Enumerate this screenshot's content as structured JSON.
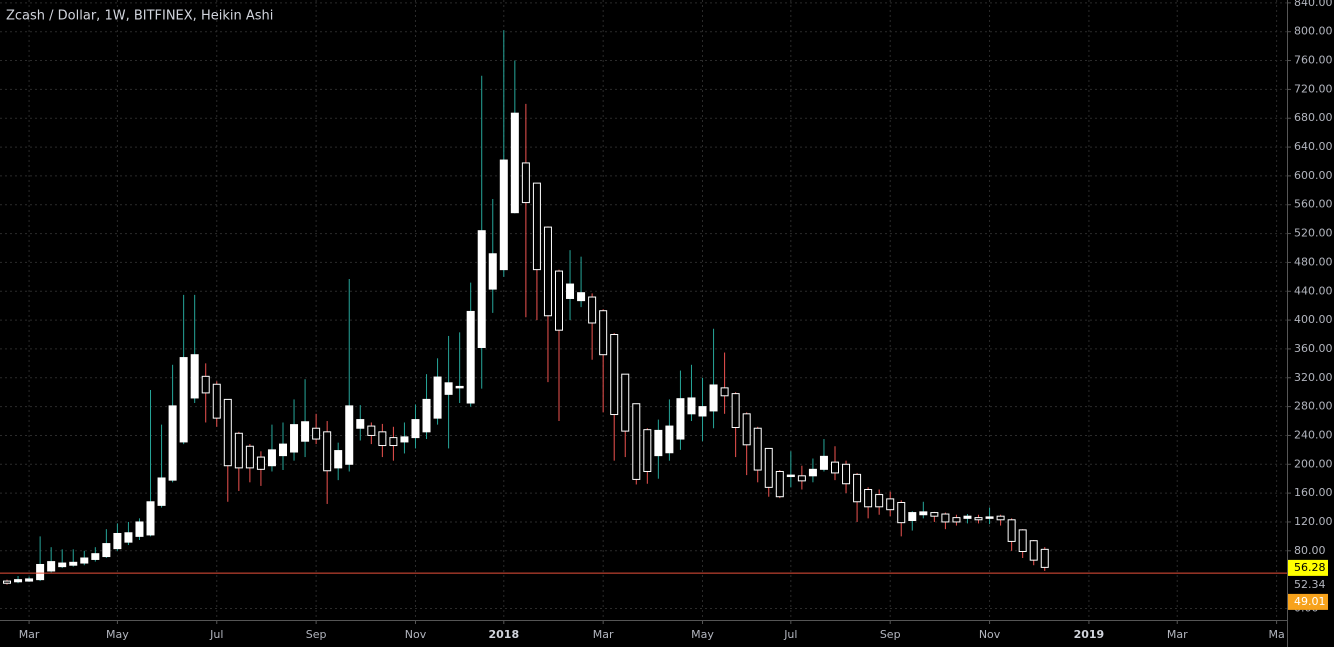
{
  "chart_data": {
    "type": "candlestick",
    "title": "Zcash / Dollar, 1W, BITFINEX, Heikin Ashi",
    "categories": [
      null,
      null,
      "Mar",
      null,
      null,
      null,
      null,
      null,
      null,
      null,
      "May",
      null,
      null,
      null,
      null,
      null,
      null,
      null,
      null,
      "Jul",
      null,
      null,
      null,
      null,
      null,
      null,
      null,
      null,
      "Sep",
      null,
      null,
      null,
      null,
      null,
      null,
      null,
      null,
      "Nov",
      null,
      null,
      null,
      null,
      null,
      null,
      null,
      "2018",
      null,
      null,
      null,
      null,
      null,
      null,
      null,
      null,
      "Mar",
      null,
      null,
      null,
      null,
      null,
      null,
      null,
      null,
      "May",
      null,
      null,
      null,
      null,
      null,
      null,
      null,
      "Jul",
      null,
      null,
      null,
      null,
      null,
      null,
      null,
      null,
      "Sep",
      null,
      null,
      null,
      null,
      null,
      null,
      null,
      null,
      "Nov",
      null,
      null,
      null,
      null,
      null,
      null,
      null,
      null,
      "2019",
      null,
      null,
      null,
      null,
      null,
      null,
      null,
      "Mar",
      null,
      null,
      null,
      null,
      null,
      null,
      null,
      null,
      "Ma",
      null
    ],
    "open": [
      38,
      37,
      38,
      40,
      52,
      58,
      60,
      63,
      68,
      72,
      83,
      92,
      100,
      102,
      143,
      178,
      231,
      292,
      322,
      311,
      290,
      243,
      225,
      210,
      198,
      212,
      217,
      232,
      250,
      245,
      195,
      200,
      250,
      253,
      245,
      237,
      231,
      237,
      245,
      264,
      297,
      306,
      285,
      362,
      443,
      470,
      549,
      618,
      590,
      529,
      468,
      430,
      427,
      432,
      413,
      380,
      325,
      284,
      248,
      212,
      216,
      235,
      270,
      267,
      274,
      306,
      298,
      270,
      250,
      222,
      190,
      183,
      184,
      184,
      193,
      203,
      200,
      186,
      165,
      158,
      152,
      147,
      122,
      130,
      133,
      131,
      126,
      125,
      126,
      125,
      128,
      123,
      109,
      94,
      82,
      null,
      null,
      null,
      null,
      null,
      null,
      null,
      null,
      null,
      null,
      null,
      null,
      null,
      null,
      null,
      null,
      null,
      null,
      null,
      null,
      null,
      null
    ],
    "high": [
      40,
      45,
      44,
      100,
      85,
      82,
      82,
      80,
      85,
      110,
      118,
      120,
      125,
      303,
      255,
      338,
      435,
      435,
      340,
      315,
      290,
      245,
      228,
      218,
      255,
      258,
      290,
      318,
      270,
      260,
      230,
      457,
      282,
      258,
      256,
      252,
      258,
      283,
      325,
      347,
      378,
      383,
      452,
      739,
      568,
      802,
      760,
      700,
      590,
      530,
      470,
      497,
      488,
      437,
      415,
      382,
      325,
      284,
      250,
      262,
      290,
      330,
      338,
      320,
      388,
      355,
      300,
      272,
      252,
      222,
      192,
      218,
      198,
      208,
      235,
      225,
      205,
      188,
      168,
      165,
      162,
      150,
      135,
      148,
      134,
      133,
      130,
      131,
      130,
      140,
      130,
      125,
      110,
      95,
      85,
      null,
      null,
      null,
      null,
      null,
      null,
      null,
      null,
      null,
      null,
      null,
      null,
      null,
      null,
      null,
      null,
      null,
      null,
      null,
      null,
      null,
      null
    ],
    "low": [
      33,
      35,
      37,
      38,
      50,
      56,
      58,
      60,
      65,
      70,
      80,
      88,
      95,
      100,
      140,
      175,
      228,
      285,
      258,
      252,
      148,
      163,
      175,
      170,
      190,
      192,
      205,
      210,
      228,
      145,
      178,
      190,
      233,
      228,
      210,
      205,
      215,
      222,
      235,
      255,
      222,
      285,
      280,
      305,
      410,
      460,
      548,
      404,
      400,
      314,
      260,
      400,
      418,
      345,
      272,
      205,
      210,
      172,
      173,
      180,
      205,
      220,
      260,
      232,
      250,
      270,
      210,
      185,
      175,
      155,
      153,
      168,
      165,
      175,
      190,
      178,
      160,
      120,
      125,
      130,
      128,
      100,
      108,
      125,
      120,
      110,
      115,
      118,
      118,
      117,
      115,
      80,
      70,
      60,
      52,
      null,
      null,
      null,
      null,
      null,
      null,
      null,
      null,
      null,
      null,
      null,
      null,
      null,
      null,
      null,
      null,
      null,
      null,
      null,
      null,
      null,
      null
    ],
    "close": [
      35,
      40,
      41,
      61,
      65,
      63,
      64,
      70,
      76,
      90,
      104,
      105,
      120,
      148,
      181,
      281,
      348,
      352,
      299,
      264,
      198,
      195,
      195,
      193,
      220,
      228,
      255,
      259,
      235,
      191,
      219,
      281,
      262,
      240,
      226,
      226,
      238,
      262,
      290,
      321,
      313,
      308,
      412,
      524,
      492,
      622,
      687,
      563,
      470,
      406,
      386,
      450,
      438,
      396,
      352,
      269,
      246,
      179,
      190,
      247,
      253,
      291,
      292,
      280,
      310,
      295,
      251,
      227,
      192,
      168,
      155,
      185,
      177,
      193,
      211,
      188,
      173,
      148,
      141,
      141,
      137,
      119,
      133,
      134,
      128,
      120,
      120,
      128,
      123,
      127,
      123,
      93,
      79,
      67,
      57,
      null,
      null,
      null,
      null,
      null,
      null,
      null,
      null,
      null,
      null,
      null,
      null,
      null,
      null,
      null,
      null,
      null,
      null,
      null,
      null,
      null,
      null
    ],
    "up_color": "#ffffff",
    "down_color": "#000000",
    "border_color": "#ffffff",
    "up_wick_color": "#26a69a",
    "down_wick_color": "#ef5350",
    "ylim": [
      -16,
      844
    ],
    "yticks": [
      {
        "value": 0,
        "label": "0.00"
      },
      {
        "value": 80,
        "label": "80.00"
      },
      {
        "value": 120,
        "label": "120.00"
      },
      {
        "value": 160,
        "label": "160.00"
      },
      {
        "value": 200,
        "label": "200.00"
      },
      {
        "value": 240,
        "label": "240.00"
      },
      {
        "value": 280,
        "label": "280.00"
      },
      {
        "value": 320,
        "label": "320.00"
      },
      {
        "value": 360,
        "label": "360.00"
      },
      {
        "value": 400,
        "label": "400.00"
      },
      {
        "value": 440,
        "label": "440.00"
      },
      {
        "value": 480,
        "label": "480.00"
      },
      {
        "value": 520,
        "label": "520.00"
      },
      {
        "value": 560,
        "label": "560.00"
      },
      {
        "value": 600,
        "label": "600.00"
      },
      {
        "value": 640,
        "label": "640.00"
      },
      {
        "value": 680,
        "label": "680.00"
      },
      {
        "value": 720,
        "label": "720.00"
      },
      {
        "value": 760,
        "label": "760.00"
      },
      {
        "value": 800,
        "label": "800.00"
      },
      {
        "value": 840,
        "label": "840.00"
      }
    ],
    "grid": true,
    "price_labels": [
      {
        "value": 56.28,
        "label": "56.28",
        "color": "#ffff00",
        "text_color": "#000000"
      },
      {
        "value": 52.34,
        "label": "52.34",
        "color": "#000000",
        "text_color": "#b2b5be"
      },
      {
        "value": 49.01,
        "label": "49.01",
        "color": "#f7a21b",
        "text_color": "#ffffff",
        "line_color": "#e8503a"
      }
    ]
  }
}
